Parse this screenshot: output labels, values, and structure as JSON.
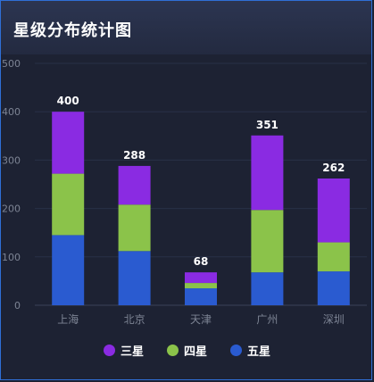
{
  "panel": {
    "title": "星级分布统计图"
  },
  "chart_data": {
    "type": "bar",
    "stacked": true,
    "title": "星级分布统计图",
    "categories": [
      "上海",
      "北京",
      "天津",
      "广州",
      "深圳"
    ],
    "series": [
      {
        "name": "五星",
        "color": "#2a5bd0",
        "values": [
          145,
          112,
          35,
          68,
          70
        ]
      },
      {
        "name": "四星",
        "color": "#8bc34a",
        "values": [
          127,
          96,
          11,
          129,
          60
        ]
      },
      {
        "name": "三星",
        "color": "#8a2be2",
        "values": [
          128,
          80,
          22,
          154,
          132
        ]
      }
    ],
    "totals": [
      400,
      288,
      68,
      351,
      262
    ],
    "ylim": [
      0,
      500
    ],
    "yticks": [
      0,
      100,
      200,
      300,
      400,
      500
    ],
    "grid": true,
    "legend": "bottom",
    "legend_order": [
      "三星",
      "四星",
      "五星"
    ]
  }
}
